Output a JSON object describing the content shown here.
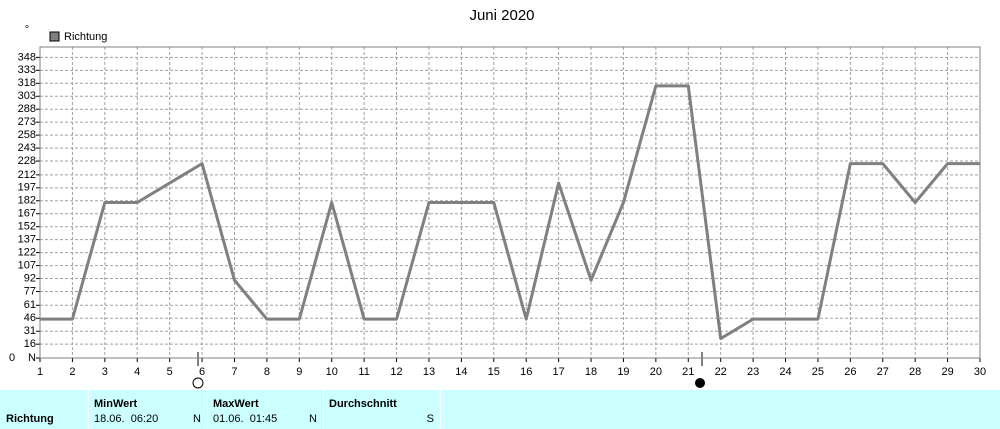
{
  "chart_data": {
    "type": "line",
    "title": "Juni 2020",
    "unit": "°",
    "y_origin_label": "0",
    "x": [
      1,
      2,
      3,
      4,
      5,
      6,
      7,
      8,
      9,
      10,
      11,
      12,
      13,
      14,
      15,
      16,
      17,
      18,
      19,
      20,
      21,
      22,
      23,
      24,
      25,
      26,
      27,
      28,
      29,
      30
    ],
    "xlim": [
      1,
      30
    ],
    "xticks": [
      1,
      2,
      3,
      4,
      5,
      6,
      7,
      8,
      9,
      10,
      11,
      12,
      13,
      14,
      15,
      16,
      17,
      18,
      19,
      20,
      21,
      22,
      23,
      24,
      25,
      26,
      27,
      28,
      29,
      30
    ],
    "series": [
      {
        "name": "Richtung",
        "color": "#808080",
        "values": [
          45,
          45,
          180,
          180,
          202.5,
          225,
          90,
          45,
          45,
          180,
          45,
          45,
          180,
          180,
          180,
          45,
          202.5,
          90,
          180,
          315,
          315,
          22.5,
          45,
          45,
          45,
          225,
          225,
          180,
          225,
          225
        ]
      }
    ],
    "ylim": [
      0,
      360
    ],
    "yticks": [
      {
        "value": 0,
        "label": "N"
      },
      16,
      31,
      46,
      61,
      77,
      92,
      107,
      122,
      137,
      152,
      167,
      182,
      197,
      212,
      228,
      243,
      258,
      273,
      288,
      303,
      318,
      333,
      348
    ],
    "grid": true
  },
  "stats_table": {
    "row_label": "Richtung",
    "columns": [
      {
        "header": "MinWert",
        "date": "18.06.  06:20",
        "dir": "N"
      },
      {
        "header": "MaxWert",
        "date": "01.06.  01:45",
        "dir": "N"
      },
      {
        "header": "Durchschnitt",
        "dir": "S"
      }
    ]
  }
}
